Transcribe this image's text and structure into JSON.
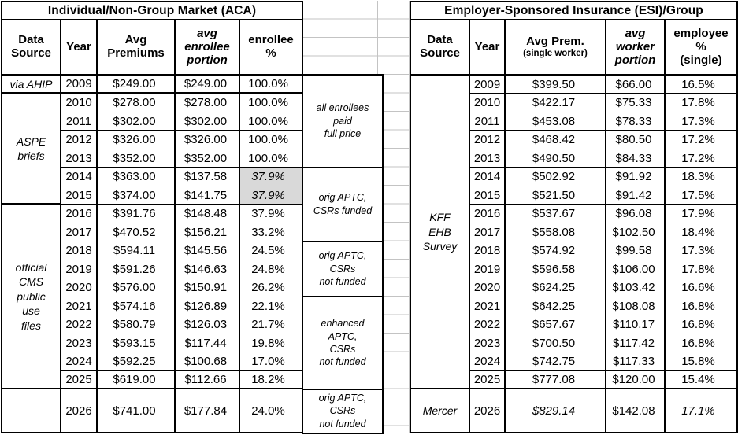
{
  "colors": {
    "shaded_cell": "#d9d9d9",
    "grid_line": "#c3c3c3",
    "border": "#000000"
  },
  "left_table": {
    "title": "Individual/Non-Group Market (ACA)",
    "headers": [
      {
        "text": "Data\nSource"
      },
      {
        "text": "Year"
      },
      {
        "text": "Avg\nPremiums"
      },
      {
        "text": "avg\nenrollee\nportion",
        "italic": true
      },
      {
        "text": "enrollee\n%"
      }
    ],
    "source_groups": [
      {
        "label": "via AHIP",
        "span": 1,
        "thick_bottom": true
      },
      {
        "label": "ASPE\nbriefs",
        "span": 6,
        "thick_bottom": true
      },
      {
        "label": "official\nCMS\npublic\nuse\nfiles",
        "span": 10,
        "thick_bottom": true
      },
      {
        "label": "",
        "span": 1,
        "thick_bottom": false
      }
    ],
    "thick_bottom_rows": [
      0,
      16
    ],
    "rows": [
      {
        "year": "2009",
        "premium": "$249.00",
        "portion": "$249.00",
        "pct": "100.0%"
      },
      {
        "year": "2010",
        "premium": "$278.00",
        "portion": "$278.00",
        "pct": "100.0%"
      },
      {
        "year": "2011",
        "premium": "$302.00",
        "portion": "$302.00",
        "pct": "100.0%"
      },
      {
        "year": "2012",
        "premium": "$326.00",
        "portion": "$326.00",
        "pct": "100.0%"
      },
      {
        "year": "2013",
        "premium": "$352.00",
        "portion": "$352.00",
        "pct": "100.0%"
      },
      {
        "year": "2014",
        "premium": "$363.00",
        "portion": "$137.58",
        "pct": "37.9%",
        "pct_shaded": true,
        "pct_italic": true
      },
      {
        "year": "2015",
        "premium": "$374.00",
        "portion": "$141.75",
        "pct": "37.9%",
        "pct_shaded": true,
        "pct_italic": true
      },
      {
        "year": "2016",
        "premium": "$391.76",
        "portion": "$148.48",
        "pct": "37.9%"
      },
      {
        "year": "2017",
        "premium": "$470.52",
        "portion": "$156.21",
        "pct": "33.2%"
      },
      {
        "year": "2018",
        "premium": "$594.11",
        "portion": "$145.56",
        "pct": "24.5%"
      },
      {
        "year": "2019",
        "premium": "$591.26",
        "portion": "$146.63",
        "pct": "24.8%"
      },
      {
        "year": "2020",
        "premium": "$576.00",
        "portion": "$150.91",
        "pct": "26.2%"
      },
      {
        "year": "2021",
        "premium": "$574.16",
        "portion": "$126.89",
        "pct": "22.1%"
      },
      {
        "year": "2022",
        "premium": "$580.79",
        "portion": "$126.03",
        "pct": "21.7%"
      },
      {
        "year": "2023",
        "premium": "$593.15",
        "portion": "$117.44",
        "pct": "19.8%"
      },
      {
        "year": "2024",
        "premium": "$592.25",
        "portion": "$100.68",
        "pct": "17.0%"
      },
      {
        "year": "2025",
        "premium": "$619.00",
        "portion": "$112.66",
        "pct": "18.2%"
      },
      {
        "year": "2026",
        "premium": "$741.00",
        "portion": "$177.84",
        "pct": "24.0%",
        "tall": true
      }
    ]
  },
  "annotations": [
    {
      "text": "all enrollees\npaid\nfull price",
      "span": 5
    },
    {
      "text": "orig APTC,\nCSRs funded",
      "span": 4
    },
    {
      "text": "orig APTC,\nCSRs\nnot funded",
      "span": 3
    },
    {
      "text": "enhanced\nAPTC,\nCSRs\nnot funded",
      "span": 5
    },
    {
      "text": "orig APTC,\nCSRs\nnot funded",
      "span": 1,
      "tall": true
    }
  ],
  "right_table": {
    "title": "Employer-Sponsored Insurance (ESI)/Group",
    "headers": [
      {
        "text": "Data\nSource"
      },
      {
        "text": "Year"
      },
      {
        "text": "Avg Prem.",
        "sub": "(single worker)"
      },
      {
        "text": "avg\nworker\nportion",
        "italic": true
      },
      {
        "text": "employee\n%\n(single)"
      }
    ],
    "source_groups": [
      {
        "label": "KFF\nEHB\nSurvey",
        "span": 17,
        "thick_bottom": true
      },
      {
        "label": "Mercer",
        "span": 1,
        "thick_bottom": false
      }
    ],
    "thick_bottom_rows": [
      16
    ],
    "rows": [
      {
        "year": "2009",
        "premium": "$399.50",
        "portion": "$66.00",
        "pct": "16.5%"
      },
      {
        "year": "2010",
        "premium": "$422.17",
        "portion": "$75.33",
        "pct": "17.8%"
      },
      {
        "year": "2011",
        "premium": "$453.08",
        "portion": "$78.33",
        "pct": "17.3%"
      },
      {
        "year": "2012",
        "premium": "$468.42",
        "portion": "$80.50",
        "pct": "17.2%"
      },
      {
        "year": "2013",
        "premium": "$490.50",
        "portion": "$84.33",
        "pct": "17.2%"
      },
      {
        "year": "2014",
        "premium": "$502.92",
        "portion": "$91.92",
        "pct": "18.3%"
      },
      {
        "year": "2015",
        "premium": "$521.50",
        "portion": "$91.42",
        "pct": "17.5%"
      },
      {
        "year": "2016",
        "premium": "$537.67",
        "portion": "$96.08",
        "pct": "17.9%"
      },
      {
        "year": "2017",
        "premium": "$558.08",
        "portion": "$102.50",
        "pct": "18.4%"
      },
      {
        "year": "2018",
        "premium": "$574.92",
        "portion": "$99.58",
        "pct": "17.3%"
      },
      {
        "year": "2019",
        "premium": "$596.58",
        "portion": "$106.00",
        "pct": "17.8%"
      },
      {
        "year": "2020",
        "premium": "$624.25",
        "portion": "$103.42",
        "pct": "16.6%"
      },
      {
        "year": "2021",
        "premium": "$642.25",
        "portion": "$108.08",
        "pct": "16.8%"
      },
      {
        "year": "2022",
        "premium": "$657.67",
        "portion": "$110.17",
        "pct": "16.8%"
      },
      {
        "year": "2023",
        "premium": "$700.50",
        "portion": "$117.42",
        "pct": "16.8%"
      },
      {
        "year": "2024",
        "premium": "$742.75",
        "portion": "$117.33",
        "pct": "15.8%"
      },
      {
        "year": "2025",
        "premium": "$777.08",
        "portion": "$120.00",
        "pct": "15.4%"
      },
      {
        "year": "2026",
        "premium": "$829.14",
        "portion": "$142.08",
        "pct": "17.1%",
        "premium_italic": true,
        "pct_italic": true,
        "tall": true
      }
    ]
  }
}
